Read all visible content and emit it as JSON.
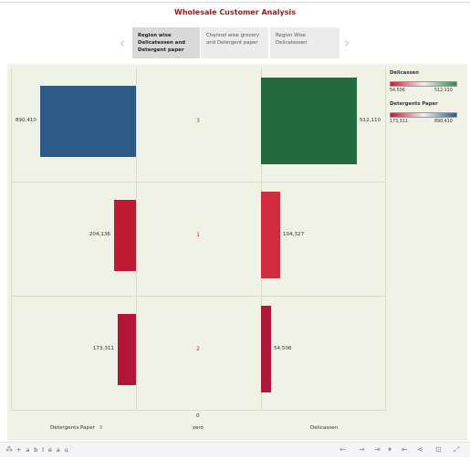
{
  "title": "Wholesale Customer Analysis",
  "story_points": [
    {
      "label": "Region wise Delicatessen and Detergent paper",
      "active": true
    },
    {
      "label": "Channel wise grocery and Detergent paper",
      "active": false
    },
    {
      "label": "Region Wise Delicatessen",
      "active": false
    }
  ],
  "nav": {
    "prev": "‹",
    "next": "›"
  },
  "legends": {
    "delicassen": {
      "title": "Delicassen",
      "min": "54,506",
      "max": "512,110",
      "color_low": "#d01c2e",
      "color_high": "#2c8a42"
    },
    "detergents": {
      "title": "Detergents Paper",
      "min": "173,311",
      "max": "890,410",
      "color_low": "#c01b3a",
      "color_high": "#2d5a8a"
    }
  },
  "axes": {
    "left_label": "Detergents Paper",
    "left_filter": "⊽",
    "middle_label": "zero",
    "right_label": "Delicassen",
    "zero_tick": "0"
  },
  "chart_data": {
    "type": "bar",
    "rows": [
      "3",
      "1",
      "2"
    ],
    "series": [
      {
        "name": "Detergents Paper",
        "values": [
          890410,
          204136,
          173311
        ],
        "labels": [
          "890,410",
          "204,136",
          "173,311"
        ],
        "colors": [
          "#2e5a87",
          "#c01a32",
          "#b11636"
        ]
      },
      {
        "name": "Delicassen",
        "values": [
          512110,
          104327,
          54506
        ],
        "labels": [
          "512,110",
          "104,327",
          "54,506"
        ],
        "colors": [
          "#236b3f",
          "#d12b3c",
          "#b01638"
        ]
      }
    ],
    "row_label_colors": [
      "#3f7d3f",
      "#c42a2a",
      "#c42a2a"
    ]
  },
  "footer": {
    "brand": "+ a b l e a u",
    "icons": [
      "undo-icon",
      "redo-icon",
      "revert-icon",
      "pause-icon",
      "share-icon",
      "download-icon",
      "fullscreen-icon"
    ]
  }
}
